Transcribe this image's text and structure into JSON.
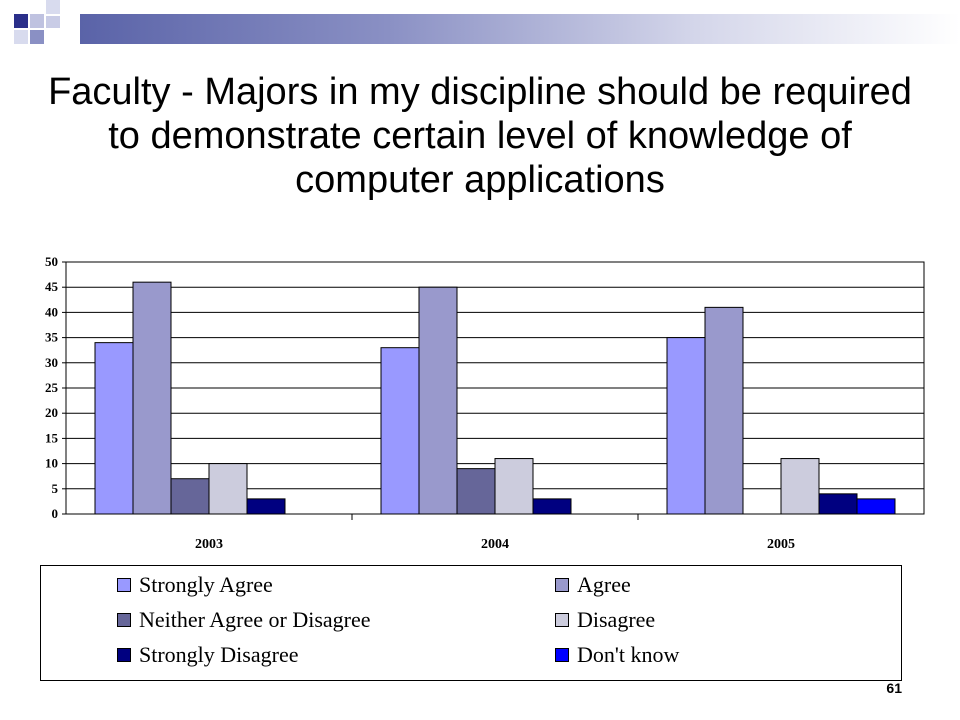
{
  "slide": {
    "title": "Faculty - Majors in my discipline should be required to demonstrate certain level of knowledge of computer applications",
    "page_number": "61"
  },
  "colors": {
    "accent_bar": "#5a63a8"
  },
  "chart_data": {
    "type": "bar",
    "title": "",
    "xlabel": "",
    "ylabel": "",
    "categories": [
      "2003",
      "2004",
      "2005"
    ],
    "ylim": [
      0,
      50
    ],
    "yticks": [
      "0",
      "5",
      "10",
      "15",
      "20",
      "25",
      "30",
      "35",
      "40",
      "45",
      "50"
    ],
    "grid": true,
    "legend_position": "bottom",
    "series": [
      {
        "name": "Strongly Agree",
        "color": "#9999ff",
        "values": [
          34,
          33,
          35
        ]
      },
      {
        "name": "Agree",
        "color": "#9999cc",
        "values": [
          46,
          45,
          41
        ]
      },
      {
        "name": "Neither Agree or Disagree",
        "color": "#666699",
        "values": [
          7,
          9,
          0
        ]
      },
      {
        "name": "Disagree",
        "color": "#ccccdd",
        "values": [
          10,
          11,
          11
        ]
      },
      {
        "name": "Strongly Disagree",
        "color": "#000080",
        "values": [
          3,
          3,
          4
        ]
      },
      {
        "name": "Don't know",
        "color": "#0000ff",
        "values": [
          0,
          0,
          3
        ]
      }
    ]
  }
}
